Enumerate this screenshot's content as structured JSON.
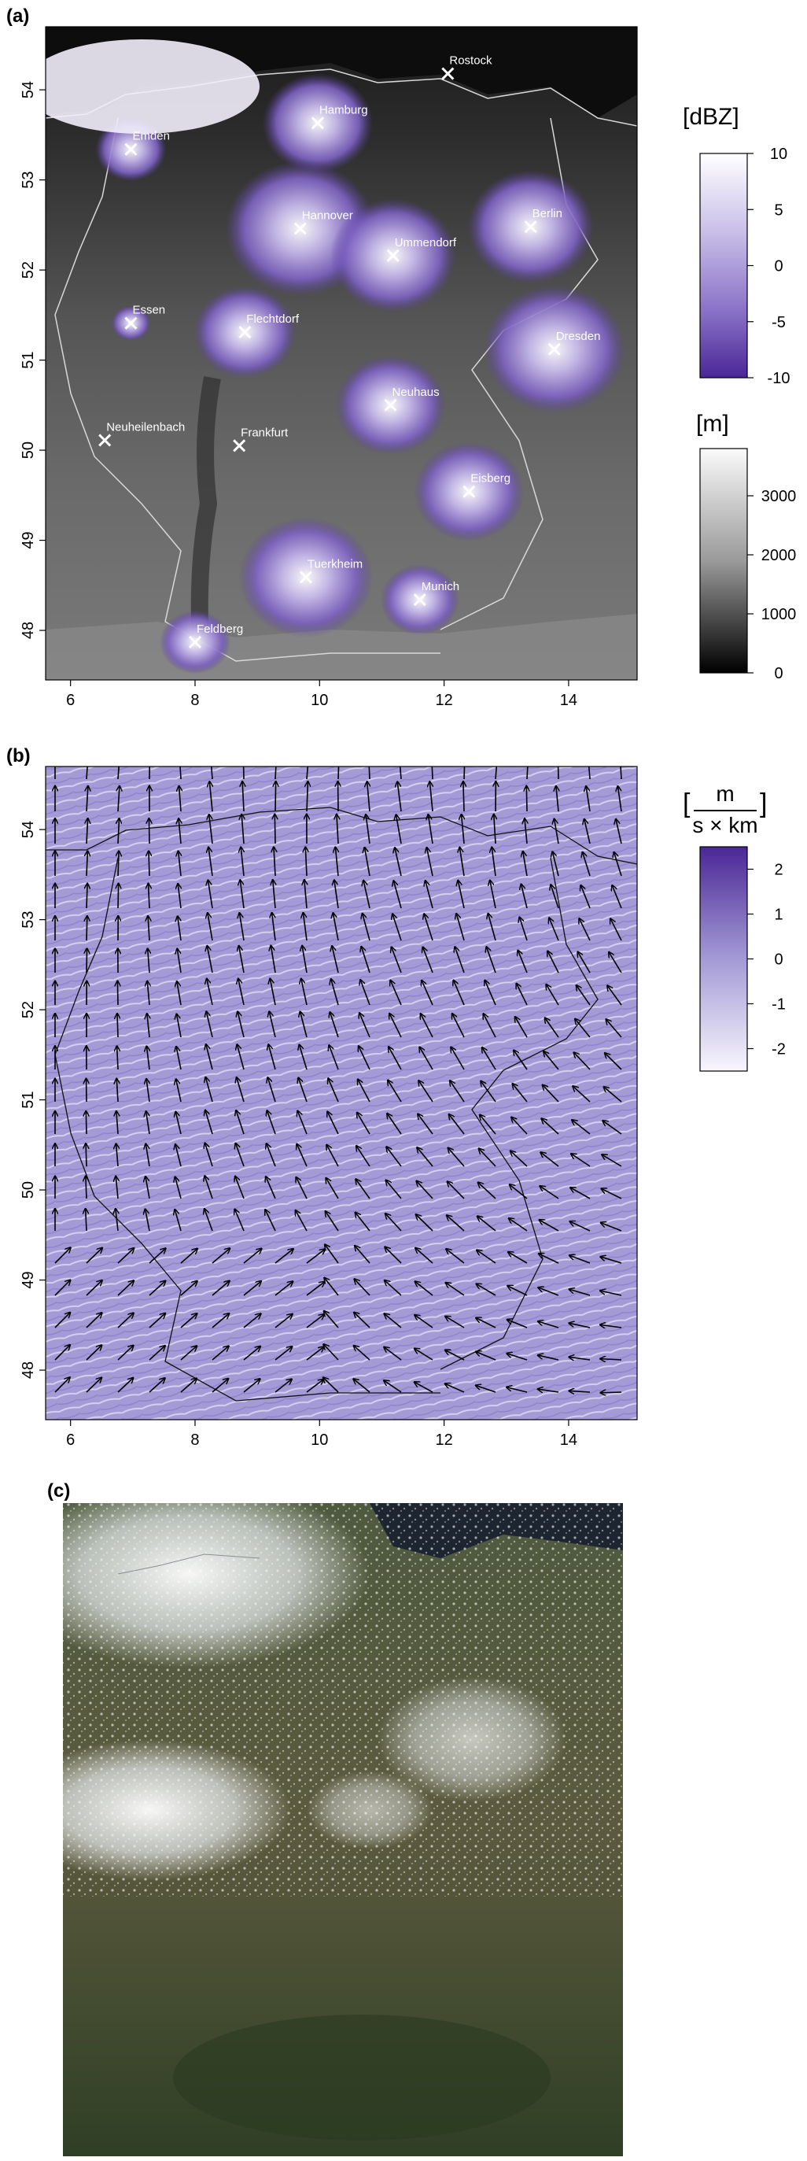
{
  "panel_a": {
    "label": "(a)",
    "x_ticks": [
      "6",
      "8",
      "10",
      "12",
      "14"
    ],
    "y_ticks": [
      "48",
      "49",
      "50",
      "51",
      "52",
      "53",
      "54"
    ],
    "radar_color": "#5b3fa6",
    "stations": [
      {
        "name": "Rostock",
        "lon": 12.06,
        "lat": 54.18
      },
      {
        "name": "Emden",
        "lon": 6.97,
        "lat": 53.34
      },
      {
        "name": "Hamburg",
        "lon": 9.97,
        "lat": 53.63
      },
      {
        "name": "Hannover",
        "lon": 9.69,
        "lat": 52.46
      },
      {
        "name": "Ummendorf",
        "lon": 11.18,
        "lat": 52.16
      },
      {
        "name": "Berlin",
        "lon": 13.39,
        "lat": 52.48
      },
      {
        "name": "Essen",
        "lon": 6.97,
        "lat": 51.41
      },
      {
        "name": "Flechtdorf",
        "lon": 8.8,
        "lat": 51.31
      },
      {
        "name": "Dresden",
        "lon": 13.77,
        "lat": 51.12
      },
      {
        "name": "Neuhaus",
        "lon": 11.14,
        "lat": 50.5
      },
      {
        "name": "Neuheilenbach",
        "lon": 6.55,
        "lat": 50.11
      },
      {
        "name": "Frankfurt",
        "lon": 8.71,
        "lat": 50.05
      },
      {
        "name": "Eisberg",
        "lon": 12.4,
        "lat": 49.54
      },
      {
        "name": "Tuerkheim",
        "lon": 9.78,
        "lat": 48.59
      },
      {
        "name": "Munich",
        "lon": 11.61,
        "lat": 48.34
      },
      {
        "name": "Feldberg",
        "lon": 8.0,
        "lat": 47.87
      }
    ],
    "legend_reflectivity": {
      "title": "[dBZ]",
      "ticks": [
        "10",
        "5",
        "0",
        "-5",
        "-10"
      ],
      "range": [
        -10,
        10
      ]
    },
    "legend_elevation": {
      "title": "[m]",
      "ticks": [
        "3000",
        "2000",
        "1000",
        "0"
      ],
      "range": [
        0,
        3800
      ]
    }
  },
  "panel_b": {
    "label": "(b)",
    "x_ticks": [
      "6",
      "8",
      "10",
      "12",
      "14"
    ],
    "y_ticks": [
      "48",
      "49",
      "50",
      "51",
      "52",
      "53",
      "54"
    ],
    "field_color": "#a49ad6",
    "legend_divergence": {
      "unit_numerator": "m",
      "unit_denominator": "s × km",
      "ticks": [
        "2",
        "1",
        "0",
        "-1",
        "-2"
      ],
      "range": [
        -2.5,
        2.5
      ]
    }
  },
  "panel_c": {
    "label": "(c)"
  }
}
